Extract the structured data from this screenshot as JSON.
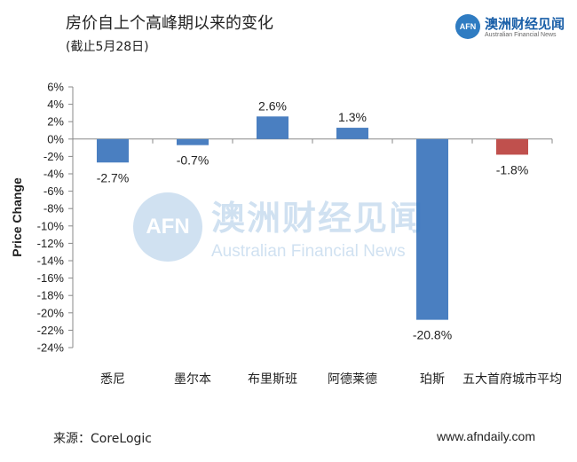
{
  "header": {
    "title": "房价自上个高峰期以来的变化",
    "subtitle": "(截止5月28日)"
  },
  "brand": {
    "badge": "AFN",
    "name": "澳洲财经见闻",
    "tagline": "Australian Financial News"
  },
  "watermark": {
    "badge": "AFN",
    "name": "澳洲财经见闻",
    "tagline": "Australian Financial News"
  },
  "footer": {
    "source": "来源：CoreLogic",
    "website": "www.afndaily.com"
  },
  "colors": {
    "positive_bar": "#4a7fc1",
    "negative_bar": "#c0504d",
    "axis": "#888888"
  },
  "chart_data": {
    "type": "bar",
    "title": "房价自上个高峰期以来的变化",
    "subtitle": "(截止5月28日)",
    "xlabel": "",
    "ylabel": "Price Change",
    "categories": [
      "悉尼",
      "墨尔本",
      "布里斯班",
      "阿德莱德",
      "珀斯",
      "五大首府城市平均"
    ],
    "values": [
      -2.7,
      -0.7,
      2.6,
      1.3,
      -20.8,
      -1.8
    ],
    "data_labels": [
      "-2.7%",
      "-0.7%",
      "2.6%",
      "1.3%",
      "-20.8%",
      "-1.8%"
    ],
    "bar_colors": [
      "blue",
      "blue",
      "blue",
      "blue",
      "blue",
      "red"
    ],
    "ylim": [
      -24,
      6
    ],
    "yticks": [
      6,
      4,
      2,
      0,
      -2,
      -4,
      -6,
      -8,
      -10,
      -12,
      -14,
      -16,
      -18,
      -20,
      -22,
      -24
    ],
    "ytick_labels": [
      "6%",
      "4%",
      "2%",
      "0%",
      "-2%",
      "-4%",
      "-6%",
      "-8%",
      "-10%",
      "-12%",
      "-14%",
      "-16%",
      "-18%",
      "-20%",
      "-22%",
      "-24%"
    ],
    "grid": false
  }
}
